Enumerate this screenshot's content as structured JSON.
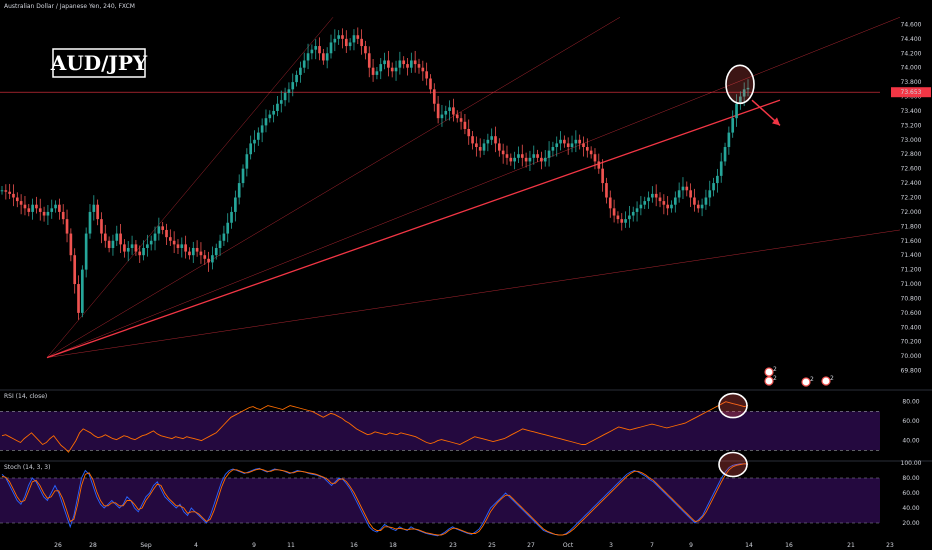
{
  "header": {
    "title": "Australian Dollar / Japanese Yen, 240, FXCM"
  },
  "symbol_label": "AUD/JPY",
  "colors": {
    "background": "#000000",
    "up_candle": "#26a69a",
    "down_candle": "#ef5350",
    "trendline": "#f23645",
    "rsi_line": "#ff6d00",
    "stoch_k": "#2962ff",
    "stoch_d": "#ff6d00",
    "indicator_band": "#2a0a4a",
    "price_label_bg": "#f23645"
  },
  "chart_data": [
    {
      "type": "candlestick",
      "title": "Australian Dollar / Japanese Yen, 240, FXCM",
      "ylim": [
        69.6,
        74.8
      ],
      "yticks": [
        "74.600",
        "74.400",
        "74.200",
        "74.000",
        "73.800",
        "73.600",
        "73.400",
        "73.200",
        "73.000",
        "72.800",
        "72.600",
        "72.400",
        "72.200",
        "72.000",
        "71.800",
        "71.600",
        "71.400",
        "71.200",
        "71.000",
        "70.800",
        "70.600",
        "70.400",
        "70.200",
        "70.000",
        "69.800"
      ],
      "xticks": [
        "26",
        "28",
        "Sep",
        "4",
        "9",
        "11",
        "16",
        "18",
        "23",
        "25",
        "27",
        "Oct",
        "3",
        "7",
        "9",
        "14",
        "16",
        "21",
        "23"
      ],
      "current_price_label": "73.653",
      "key_levels": [
        {
          "name": "horizontal-level",
          "value": 73.66
        },
        {
          "name": "swing-low",
          "value": 69.98
        }
      ],
      "trendlines": [
        {
          "from": [
            "Aug 26",
            69.98
          ],
          "to": [
            "Oct 14",
            73.55
          ],
          "style": "thick"
        },
        {
          "from": [
            "Aug 26",
            69.98
          ],
          "to": [
            "Oct 23",
            71.75
          ],
          "style": "thin"
        },
        {
          "from": [
            "Aug 26",
            69.98
          ],
          "to": [
            "Oct 23",
            74.7
          ],
          "style": "thin"
        },
        {
          "from": [
            "Aug 26",
            69.98
          ],
          "to": [
            "Sep 11",
            74.7
          ],
          "style": "thin"
        },
        {
          "from": [
            "Aug 26",
            69.98
          ],
          "to": [
            "Sep 23",
            74.7
          ],
          "style": "thin"
        }
      ],
      "annotations": [
        {
          "type": "circle",
          "at": [
            "Oct 11",
            73.77
          ]
        },
        {
          "type": "arrow",
          "from": [
            "Oct 11",
            73.55
          ],
          "to": [
            "Oct 14",
            73.2
          ]
        }
      ],
      "series": [
        {
          "name": "price",
          "values": [
            72.3,
            72.28,
            72.25,
            72.2,
            72.15,
            72.1,
            72.05,
            72.0,
            72.1,
            72.05,
            72.0,
            71.95,
            72.0,
            72.05,
            72.1,
            72.0,
            71.9,
            71.7,
            71.4,
            71.0,
            70.6,
            71.2,
            71.7,
            72.0,
            72.1,
            71.9,
            71.7,
            71.6,
            71.5,
            71.6,
            71.7,
            71.55,
            71.45,
            71.5,
            71.55,
            71.45,
            71.4,
            71.5,
            71.55,
            71.6,
            71.7,
            71.8,
            71.75,
            71.65,
            71.6,
            71.55,
            71.5,
            71.55,
            71.45,
            71.4,
            71.5,
            71.45,
            71.4,
            71.35,
            71.3,
            71.4,
            71.5,
            71.6,
            71.7,
            71.85,
            72.0,
            72.2,
            72.4,
            72.6,
            72.8,
            72.95,
            73.0,
            73.1,
            73.2,
            73.3,
            73.35,
            73.4,
            73.5,
            73.55,
            73.65,
            73.7,
            73.8,
            73.9,
            74.0,
            74.1,
            74.2,
            74.25,
            74.3,
            74.2,
            74.1,
            74.2,
            74.35,
            74.4,
            74.45,
            74.4,
            74.3,
            74.35,
            74.45,
            74.4,
            74.3,
            74.2,
            74.0,
            73.9,
            73.95,
            74.05,
            74.1,
            74.0,
            73.95,
            74.0,
            74.1,
            74.05,
            74.0,
            74.1,
            74.05,
            74.0,
            73.95,
            73.85,
            73.7,
            73.5,
            73.3,
            73.35,
            73.4,
            73.45,
            73.35,
            73.3,
            73.25,
            73.15,
            73.05,
            72.95,
            72.9,
            72.85,
            72.95,
            73.0,
            73.05,
            72.95,
            72.85,
            72.8,
            72.75,
            72.7,
            72.75,
            72.8,
            72.75,
            72.7,
            72.75,
            72.8,
            72.75,
            72.7,
            72.75,
            72.85,
            72.9,
            72.95,
            73.0,
            72.95,
            72.9,
            72.95,
            73.0,
            72.95,
            72.9,
            72.85,
            72.8,
            72.7,
            72.6,
            72.4,
            72.2,
            72.05,
            71.95,
            71.9,
            71.85,
            71.9,
            71.95,
            72.0,
            72.05,
            72.1,
            72.15,
            72.2,
            72.25,
            72.2,
            72.15,
            72.1,
            72.05,
            72.1,
            72.2,
            72.3,
            72.35,
            72.3,
            72.2,
            72.1,
            72.05,
            72.1,
            72.2,
            72.3,
            72.4,
            72.5,
            72.7,
            72.9,
            73.1,
            73.3,
            73.5,
            73.6,
            73.7,
            73.72
          ]
        }
      ]
    },
    {
      "type": "line",
      "title": "RSI (14, close)",
      "ylim": [
        20,
        90
      ],
      "yticks": [
        "80.00",
        "60.00",
        "40.00"
      ],
      "bands": [
        30,
        70
      ],
      "series": [
        {
          "name": "RSI",
          "values": [
            45,
            46,
            44,
            42,
            40,
            38,
            42,
            45,
            48,
            44,
            40,
            36,
            38,
            42,
            45,
            40,
            35,
            32,
            28,
            34,
            40,
            48,
            52,
            50,
            48,
            45,
            43,
            44,
            46,
            44,
            42,
            41,
            43,
            45,
            44,
            42,
            41,
            43,
            45,
            46,
            48,
            50,
            47,
            45,
            44,
            43,
            42,
            44,
            43,
            42,
            44,
            43,
            42,
            41,
            40,
            42,
            44,
            46,
            48,
            52,
            56,
            60,
            64,
            66,
            68,
            70,
            72,
            74,
            75,
            73,
            72,
            74,
            76,
            75,
            74,
            73,
            72,
            74,
            76,
            75,
            74,
            73,
            72,
            71,
            70,
            68,
            66,
            64,
            66,
            68,
            67,
            65,
            63,
            60,
            58,
            55,
            52,
            50,
            48,
            46,
            47,
            49,
            48,
            47,
            46,
            48,
            47,
            46,
            48,
            47,
            46,
            45,
            44,
            42,
            40,
            38,
            37,
            38,
            40,
            41,
            40,
            39,
            38,
            37,
            36,
            38,
            40,
            42,
            44,
            43,
            42,
            41,
            40,
            39,
            40,
            41,
            42,
            44,
            46,
            48,
            50,
            52,
            51,
            50,
            49,
            48,
            47,
            46,
            45,
            44,
            43,
            42,
            41,
            40,
            39,
            38,
            37,
            36,
            36,
            38,
            40,
            42,
            44,
            46,
            48,
            50,
            52,
            54,
            53,
            52,
            51,
            52,
            53,
            54,
            55,
            56,
            57,
            56,
            55,
            54,
            53,
            54,
            55,
            56,
            57,
            58,
            60,
            62,
            64,
            66,
            68,
            70,
            72,
            74,
            76,
            78,
            80,
            79,
            78,
            77,
            76,
            75,
            76
          ]
        }
      ]
    },
    {
      "type": "line",
      "title": "Stoch (14, 3, 3)",
      "ylim": [
        0,
        100
      ],
      "yticks": [
        "100.00",
        "80.00",
        "60.00",
        "40.00",
        "20.00"
      ],
      "bands": [
        20,
        80
      ],
      "series": [
        {
          "name": "%K",
          "values": [
            85,
            80,
            70,
            60,
            50,
            45,
            55,
            70,
            80,
            75,
            65,
            55,
            50,
            60,
            70,
            60,
            45,
            30,
            15,
            30,
            55,
            80,
            90,
            85,
            70,
            55,
            45,
            40,
            45,
            50,
            45,
            40,
            45,
            55,
            50,
            40,
            35,
            45,
            55,
            60,
            70,
            75,
            65,
            55,
            50,
            45,
            40,
            45,
            35,
            30,
            40,
            35,
            30,
            25,
            20,
            30,
            45,
            60,
            75,
            85,
            90,
            92,
            90,
            88,
            86,
            88,
            90,
            92,
            93,
            90,
            88,
            90,
            92,
            91,
            90,
            88,
            86,
            88,
            90,
            89,
            88,
            86,
            85,
            84,
            82,
            80,
            75,
            70,
            75,
            80,
            78,
            72,
            65,
            55,
            45,
            35,
            25,
            15,
            10,
            8,
            12,
            18,
            15,
            12,
            10,
            15,
            12,
            10,
            15,
            12,
            10,
            8,
            6,
            5,
            4,
            3,
            5,
            8,
            12,
            15,
            12,
            10,
            8,
            6,
            5,
            8,
            12,
            20,
            30,
            40,
            45,
            50,
            55,
            60,
            55,
            50,
            45,
            40,
            35,
            30,
            25,
            20,
            15,
            10,
            8,
            6,
            5,
            4,
            4,
            6,
            10,
            15,
            20,
            25,
            30,
            35,
            40,
            45,
            50,
            55,
            60,
            65,
            70,
            75,
            80,
            85,
            88,
            90,
            88,
            85,
            82,
            78,
            75,
            70,
            65,
            60,
            55,
            50,
            45,
            40,
            35,
            30,
            25,
            20,
            25,
            30,
            40,
            50,
            60,
            70,
            80,
            88,
            94,
            97,
            98,
            99,
            99,
            98
          ]
        },
        {
          "name": "%D",
          "values": [
            82,
            81,
            75,
            65,
            55,
            48,
            50,
            62,
            75,
            77,
            70,
            60,
            53,
            55,
            63,
            63,
            53,
            38,
            22,
            25,
            45,
            70,
            85,
            87,
            78,
            62,
            50,
            43,
            43,
            47,
            47,
            43,
            43,
            50,
            50,
            45,
            38,
            40,
            50,
            57,
            65,
            72,
            70,
            60,
            53,
            48,
            43,
            43,
            40,
            33,
            35,
            35,
            32,
            27,
            22,
            25,
            37,
            52,
            68,
            80,
            87,
            91,
            91,
            89,
            87,
            87,
            89,
            91,
            92,
            91,
            89,
            89,
            91,
            91,
            90,
            89,
            87,
            87,
            89,
            89,
            88,
            87,
            86,
            85,
            83,
            81,
            78,
            73,
            73,
            78,
            79,
            75,
            68,
            60,
            50,
            40,
            30,
            20,
            13,
            10,
            10,
            15,
            15,
            14,
            12,
            13,
            12,
            11,
            12,
            12,
            11,
            9,
            7,
            6,
            5,
            4,
            4,
            6,
            10,
            13,
            13,
            11,
            9,
            7,
            6,
            6,
            9,
            16,
            25,
            35,
            42,
            48,
            53,
            57,
            57,
            52,
            47,
            42,
            37,
            32,
            27,
            22,
            17,
            12,
            9,
            7,
            5,
            4,
            4,
            5,
            8,
            12,
            17,
            22,
            27,
            32,
            37,
            42,
            47,
            52,
            57,
            62,
            67,
            72,
            77,
            82,
            86,
            89,
            89,
            87,
            84,
            80,
            77,
            72,
            67,
            62,
            57,
            52,
            47,
            42,
            37,
            32,
            27,
            22,
            23,
            28,
            35,
            45,
            55,
            65,
            75,
            84,
            91,
            95,
            97,
            98,
            99,
            99
          ]
        }
      ]
    }
  ],
  "event_markers": [
    "2",
    "2",
    "2",
    "2"
  ]
}
